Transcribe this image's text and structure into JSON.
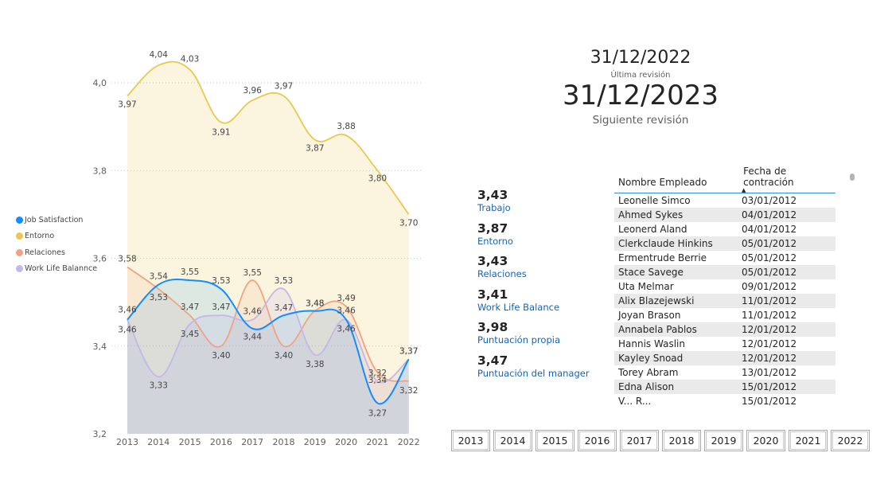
{
  "chart_data": {
    "type": "line",
    "x": [
      "2013",
      "2014",
      "2015",
      "2016",
      "2017",
      "2018",
      "2019",
      "2020",
      "2021",
      "2022"
    ],
    "ylim": [
      3.2,
      4.05
    ],
    "y_ticks": [
      "4,0",
      "3,8",
      "3,6",
      "3,4",
      "3,2"
    ],
    "y_tick_values": [
      4.0,
      3.8,
      3.6,
      3.4,
      3.2
    ],
    "grid": true,
    "legend_position": "left",
    "series": [
      {
        "name": "Job Satisfaction",
        "color": "#118dff",
        "values": [
          3.46,
          3.54,
          3.55,
          3.53,
          3.44,
          3.47,
          3.48,
          3.46,
          3.27,
          3.37
        ],
        "labels": [
          "3,46",
          "3,54",
          "3,55",
          "3,53",
          "3,44",
          "3,47",
          "3,48",
          "3,46",
          "3,27",
          "3,37"
        ]
      },
      {
        "name": "Entorno",
        "color": "#e8c84e",
        "values": [
          3.97,
          4.04,
          4.03,
          3.91,
          3.96,
          3.97,
          3.87,
          3.88,
          3.8,
          3.7
        ],
        "labels": [
          "3,97",
          "4,04",
          "4,03",
          "3,91",
          "3,96",
          "3,97",
          "3,87",
          "3,88",
          "3,80",
          "3,70"
        ]
      },
      {
        "name": "Relaciones",
        "color": "#f0a383",
        "values": [
          3.58,
          3.53,
          3.47,
          3.4,
          3.55,
          3.4,
          3.48,
          3.49,
          3.34,
          3.32
        ],
        "labels": [
          "3,58",
          "3,53",
          "3,47",
          "3,40",
          "3,55",
          "3,40",
          "3,48",
          "3,49",
          "3,34",
          "3,32"
        ]
      },
      {
        "name": "Work Life Balannce",
        "color": "#c5b7e6",
        "values": [
          3.46,
          3.33,
          3.45,
          3.47,
          3.46,
          3.53,
          3.38,
          3.46,
          3.32,
          3.37
        ],
        "labels": [
          "3,46",
          "3,33",
          "3,45",
          "3,47",
          "3,46",
          "3,53",
          "3,38",
          "3,46",
          "3,32",
          "3,37"
        ]
      }
    ]
  },
  "review": {
    "last_date": "31/12/2022",
    "last_label": "Última revisión",
    "next_date": "31/12/2023",
    "next_label": "Siguiente revisión"
  },
  "kpis": [
    {
      "value": "3,43",
      "label": "Trabajo"
    },
    {
      "value": "3,87",
      "label": "Entorno"
    },
    {
      "value": "3,43",
      "label": "Relaciones"
    },
    {
      "value": "3,41",
      "label": "Work Life Balance"
    },
    {
      "value": "3,98",
      "label": "Puntuación propia"
    },
    {
      "value": "3,47",
      "label": "Puntuación del manager"
    }
  ],
  "table": {
    "headers": [
      "Nombre Empleado",
      "Fecha de contración"
    ],
    "sort_icon": "sort-ascending-icon",
    "rows": [
      [
        "Leonelle Simco",
        "03/01/2012"
      ],
      [
        "Ahmed Sykes",
        "04/01/2012"
      ],
      [
        "Leonerd Aland",
        "04/01/2012"
      ],
      [
        "Clerkclaude Hinkins",
        "05/01/2012"
      ],
      [
        "Ermentrude Berrie",
        "05/01/2012"
      ],
      [
        "Stace Savege",
        "05/01/2012"
      ],
      [
        "Uta Melmar",
        "09/01/2012"
      ],
      [
        "Alix Blazejewski",
        "11/01/2012"
      ],
      [
        "Joyan Brason",
        "11/01/2012"
      ],
      [
        "Annabela Pablos",
        "12/01/2012"
      ],
      [
        "Hannis Waslin",
        "12/01/2012"
      ],
      [
        "Kayley Snoad",
        "12/01/2012"
      ],
      [
        "Torey Abram",
        "13/01/2012"
      ],
      [
        "Edna Alison",
        "15/01/2012"
      ],
      [
        "V... R...",
        "15/01/2012"
      ]
    ]
  },
  "year_slicer": [
    "2013",
    "2014",
    "2015",
    "2016",
    "2017",
    "2018",
    "2019",
    "2020",
    "2021",
    "2022"
  ]
}
